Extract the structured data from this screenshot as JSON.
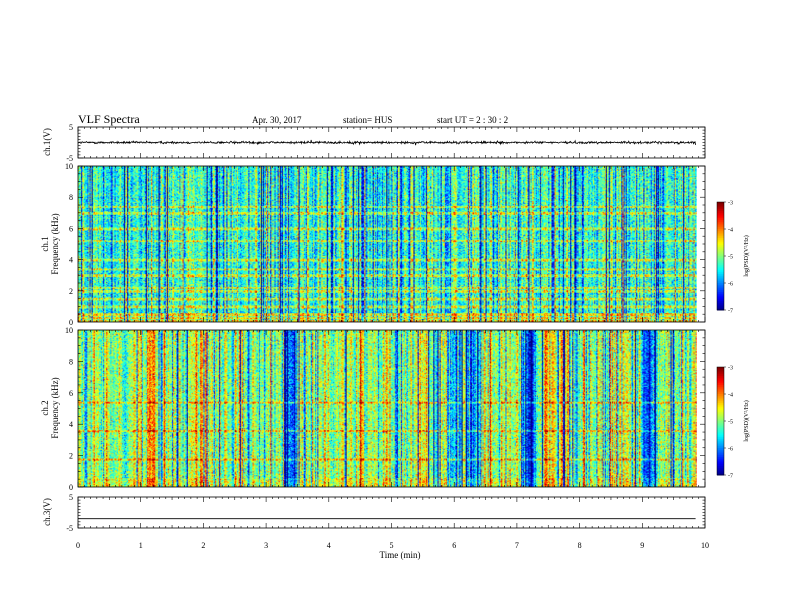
{
  "header": {
    "title": "VLF Spectra",
    "date": "Apr. 30, 2017",
    "station": "station= HUS",
    "start": "start  UT =   2  : 30 : 2"
  },
  "chart_data": [
    {
      "type": "line",
      "id": "ch1-waveform",
      "ylabel": "ch.1(V)",
      "ylim": [
        -5,
        5
      ],
      "yticks": [
        "5",
        "-5"
      ],
      "xlim": [
        0,
        10
      ],
      "trace_level": 0,
      "trace_color": "#000000",
      "description_of_series": "dense noisy waveform around ~0 V spanning 0 to ~9.85 min"
    },
    {
      "type": "heatmap",
      "id": "ch1-spectrogram",
      "ylabel": "Frequency (kHz)",
      "channel_label": "ch.1",
      "ylim": [
        0,
        10
      ],
      "yticks": [
        "0",
        "2",
        "4",
        "6",
        "8",
        "10"
      ],
      "xlim": [
        0,
        10
      ],
      "data_xmax": 9.85,
      "colorbar": {
        "min": -7,
        "max": -3,
        "ticks": [
          "-3",
          "-4",
          "-5",
          "-6",
          "-7"
        ],
        "label": "log(PSD)(V²/Hz)"
      },
      "horizontal_lines_khz": [
        0.1,
        0.3,
        0.5,
        1.0,
        1.5,
        2.0,
        2.2,
        3.0,
        3.4,
        4.0,
        5.2,
        6.0,
        7.0,
        7.4
      ],
      "base_level": -5.3
    },
    {
      "type": "heatmap",
      "id": "ch2-spectrogram",
      "ylabel": "Frequency (kHz)",
      "channel_label": "ch.2",
      "ylim": [
        0,
        10
      ],
      "yticks": [
        "0",
        "2",
        "4",
        "6",
        "8",
        "10"
      ],
      "xlim": [
        0,
        10
      ],
      "data_xmax": 9.85,
      "colorbar": {
        "min": -7,
        "max": -3,
        "ticks": [
          "-3",
          "-4",
          "-5",
          "-6",
          "-7"
        ],
        "label": "log(PSD)(V²/Hz)"
      },
      "horizontal_lines_khz": [
        1.8,
        3.6,
        5.4
      ],
      "bright_times_min": [
        1.15,
        1.9,
        2.0,
        4.5,
        5.5,
        7.5,
        8.7
      ],
      "dark_times_min": [
        6.3,
        6.0,
        7.2,
        9.1,
        3.4
      ],
      "base_level": -4.9
    },
    {
      "type": "line",
      "id": "ch3-waveform",
      "ylabel": "ch.3(V)",
      "ylim": [
        -5,
        5
      ],
      "yticks": [
        "5",
        "-5"
      ],
      "xlim": [
        0,
        10
      ],
      "trace_level": -2,
      "trace_color": "#000000",
      "description_of_series": "flat line near -2 V"
    }
  ],
  "x_axis": {
    "label": "Time (min)",
    "ticks": [
      "0",
      "1",
      "2",
      "3",
      "4",
      "5",
      "6",
      "7",
      "8",
      "9",
      "10"
    ]
  },
  "colors": {
    "jet": [
      "#00007f",
      "#0000ff",
      "#007fff",
      "#00ffff",
      "#7fff7f",
      "#ffff00",
      "#ff7f00",
      "#ff0000",
      "#7f0000"
    ]
  }
}
